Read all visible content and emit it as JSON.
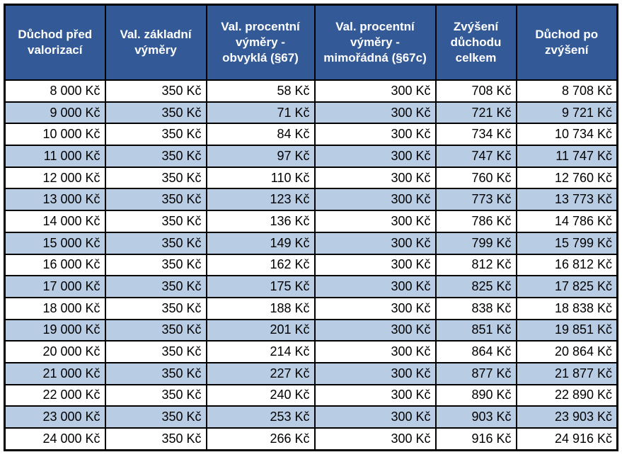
{
  "table": {
    "headers": [
      "Důchod před valorizací",
      "Val. základní výměry",
      "Val. procentní výměry - obvyklá (§67)",
      "Val. procentní výměry - mimořádná (§67c)",
      "Zvýšení důchodu celkem",
      "Důchod po zvýšení"
    ],
    "rows": [
      [
        "8 000 Kč",
        "350 Kč",
        "58 Kč",
        "300 Kč",
        "708 Kč",
        "8 708 Kč"
      ],
      [
        "9 000 Kč",
        "350 Kč",
        "71 Kč",
        "300 Kč",
        "721 Kč",
        "9 721 Kč"
      ],
      [
        "10 000 Kč",
        "350 Kč",
        "84 Kč",
        "300 Kč",
        "734 Kč",
        "10 734 Kč"
      ],
      [
        "11 000 Kč",
        "350 Kč",
        "97 Kč",
        "300 Kč",
        "747 Kč",
        "11 747 Kč"
      ],
      [
        "12 000 Kč",
        "350 Kč",
        "110 Kč",
        "300 Kč",
        "760 Kč",
        "12 760 Kč"
      ],
      [
        "13 000 Kč",
        "350 Kč",
        "123 Kč",
        "300 Kč",
        "773 Kč",
        "13 773 Kč"
      ],
      [
        "14 000 Kč",
        "350 Kč",
        "136 Kč",
        "300 Kč",
        "786 Kč",
        "14 786 Kč"
      ],
      [
        "15 000 Kč",
        "350 Kč",
        "149 Kč",
        "300 Kč",
        "799 Kč",
        "15 799 Kč"
      ],
      [
        "16 000 Kč",
        "350 Kč",
        "162 Kč",
        "300 Kč",
        "812 Kč",
        "16 812 Kč"
      ],
      [
        "17 000 Kč",
        "350 Kč",
        "175 Kč",
        "300 Kč",
        "825 Kč",
        "17 825 Kč"
      ],
      [
        "18 000 Kč",
        "350 Kč",
        "188 Kč",
        "300 Kč",
        "838 Kč",
        "18 838 Kč"
      ],
      [
        "19 000 Kč",
        "350 Kč",
        "201 Kč",
        "300 Kč",
        "851 Kč",
        "19 851 Kč"
      ],
      [
        "20 000 Kč",
        "350 Kč",
        "214 Kč",
        "300 Kč",
        "864 Kč",
        "20 864 Kč"
      ],
      [
        "21 000 Kč",
        "350 Kč",
        "227 Kč",
        "300 Kč",
        "877 Kč",
        "21 877 Kč"
      ],
      [
        "22 000 Kč",
        "350 Kč",
        "240 Kč",
        "300 Kč",
        "890 Kč",
        "22 890 Kč"
      ],
      [
        "23 000 Kč",
        "350 Kč",
        "253 Kč",
        "300 Kč",
        "903 Kč",
        "23 903 Kč"
      ],
      [
        "24 000 Kč",
        "350 Kč",
        "266 Kč",
        "300 Kč",
        "916 Kč",
        "24 916 Kč"
      ]
    ]
  }
}
